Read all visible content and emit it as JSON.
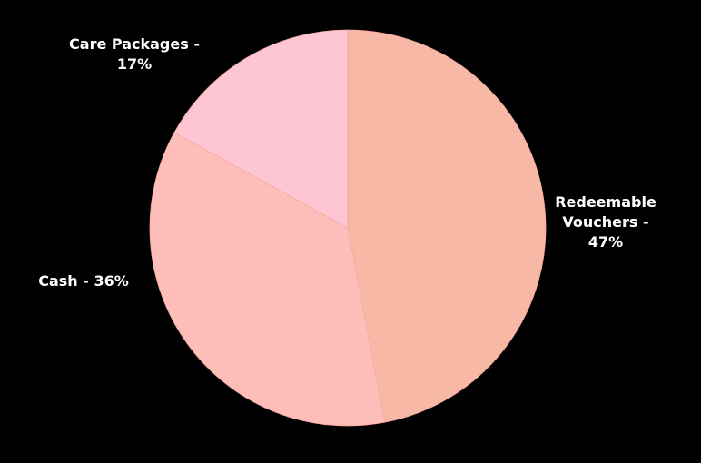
{
  "chart_data": {
    "type": "pie",
    "values": [
      47,
      36,
      17
    ],
    "value_labels": [
      "Redeemable Vouchers - 47%",
      "Cash - 36%",
      "Care Packages - 17%"
    ],
    "colors": [
      "#f8b8a6",
      "#fdbdb8",
      "#fec6d2"
    ]
  }
}
